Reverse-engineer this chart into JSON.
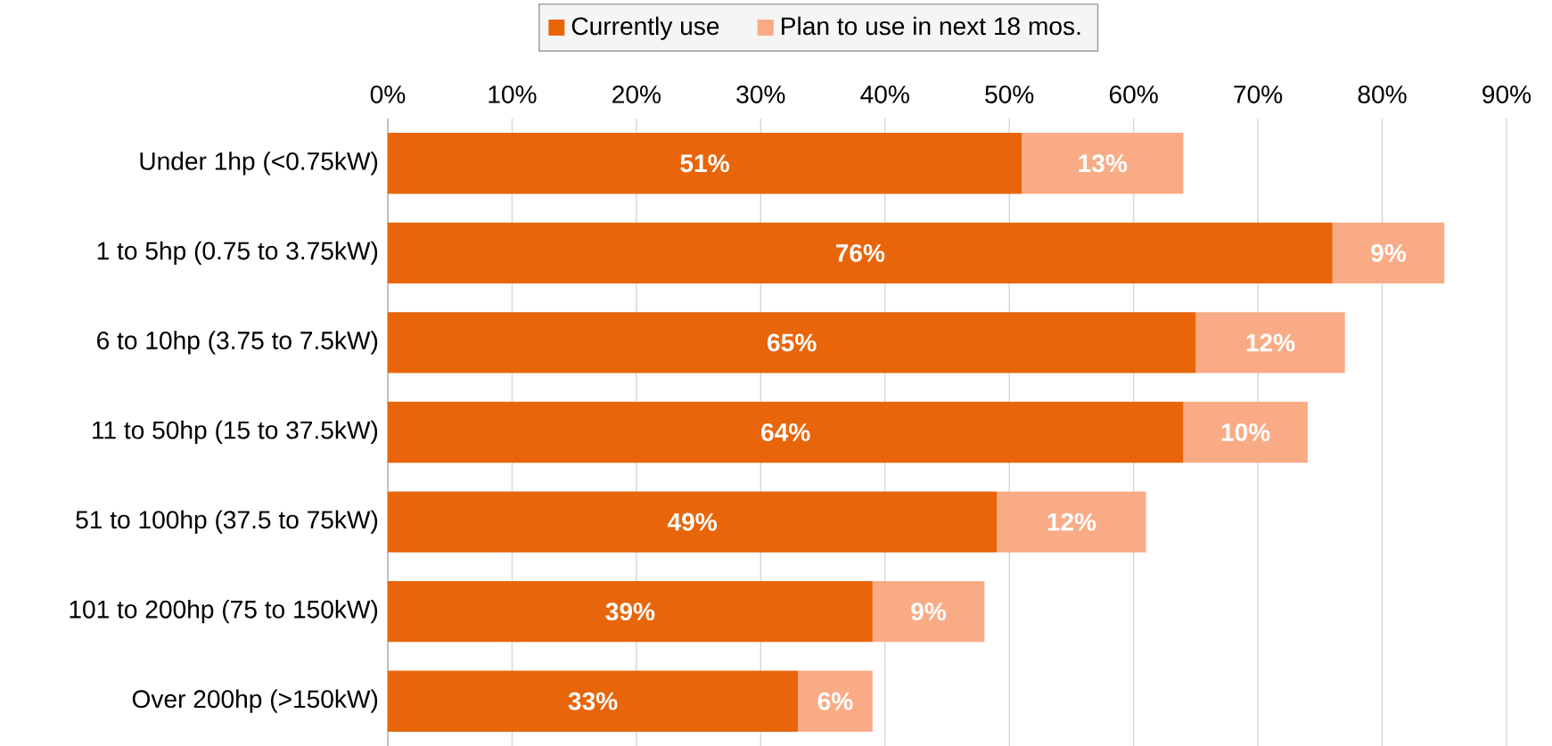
{
  "chart_data": {
    "type": "bar",
    "orientation": "horizontal",
    "stacked": true,
    "categories": [
      "Under 1hp (<0.75kW)",
      "1 to 5hp (0.75 to 3.75kW)",
      "6 to 10hp  (3.75 to 7.5kW)",
      "11 to 50hp  (15 to 37.5kW)",
      "51 to 100hp  (37.5 to 75kW)",
      "101 to 200hp (75 to 150kW)",
      "Over 200hp  (>150kW)"
    ],
    "series": [
      {
        "name": "Currently use",
        "color": "#e8650a",
        "values": [
          51,
          76,
          65,
          64,
          49,
          39,
          33
        ],
        "value_labels": [
          "51%",
          "76%",
          "65%",
          "64%",
          "49%",
          "39%",
          "33%"
        ]
      },
      {
        "name": "Plan to use in next 18 mos.",
        "color": "#f9ab86",
        "values": [
          13,
          9,
          12,
          10,
          12,
          9,
          6
        ],
        "value_labels": [
          "13%",
          "9%",
          "12%",
          "10%",
          "12%",
          "9%",
          "6%"
        ]
      }
    ],
    "xlim": [
      0,
      90
    ],
    "xticks": [
      {
        "value": 0,
        "label": "0%"
      },
      {
        "value": 10,
        "label": "10%"
      },
      {
        "value": 20,
        "label": "20%"
      },
      {
        "value": 30,
        "label": "30%"
      },
      {
        "value": 40,
        "label": "40%"
      },
      {
        "value": 50,
        "label": "50%"
      },
      {
        "value": 60,
        "label": "60%"
      },
      {
        "value": 70,
        "label": "70%"
      },
      {
        "value": 80,
        "label": "80%"
      },
      {
        "value": 90,
        "label": "90%"
      }
    ],
    "grid": "x",
    "legend": "top"
  }
}
